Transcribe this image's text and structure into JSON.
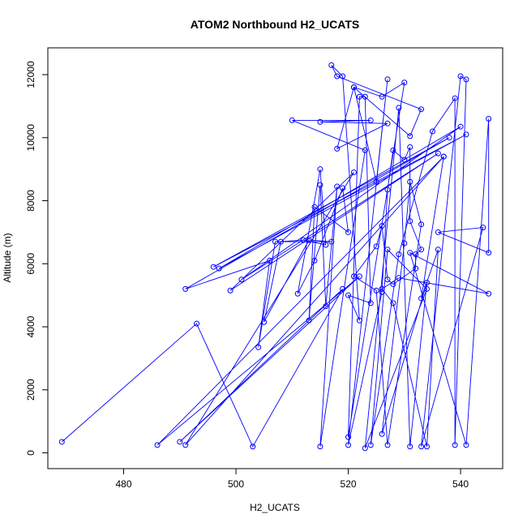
{
  "chart_data": {
    "type": "line",
    "title": "ATOM2 Northbound H2_UCATS",
    "xlabel": "H2_UCATS",
    "ylabel": "Altitude (m)",
    "xlim": [
      466.5,
      547.5
    ],
    "ylim": [
      -500,
      12850
    ],
    "x_ticks": [
      480,
      500,
      520,
      540
    ],
    "y_ticks": [
      0,
      2000,
      4000,
      6000,
      8000,
      10000,
      12000
    ],
    "grid": false,
    "legend": "none",
    "line_color": "#0000ff",
    "series": [
      {
        "marker": "open-circle",
        "points": [
          [
            469,
            350
          ],
          [
            493,
            4100
          ],
          [
            503,
            200
          ],
          [
            519,
            5200
          ],
          [
            490,
            350
          ],
          [
            522,
            5600
          ],
          [
            486,
            250
          ],
          [
            537,
            9400
          ],
          [
            491,
            250
          ],
          [
            521,
            8900
          ],
          [
            499,
            5150
          ],
          [
            536,
            9500
          ],
          [
            501,
            5500
          ],
          [
            540,
            10350
          ],
          [
            497,
            5850
          ],
          [
            541,
            10100
          ],
          [
            496,
            5900
          ],
          [
            538,
            10000
          ],
          [
            491,
            5200
          ],
          [
            506,
            6100
          ],
          [
            504,
            3350
          ],
          [
            507,
            6700
          ],
          [
            517,
            6700
          ],
          [
            513,
            6750
          ],
          [
            505,
            4150
          ],
          [
            508,
            6700
          ],
          [
            512,
            6750
          ],
          [
            516,
            6600
          ],
          [
            515,
            9000
          ],
          [
            511,
            5050
          ],
          [
            514,
            6100
          ],
          [
            519,
            8400
          ],
          [
            520,
            7000
          ],
          [
            514,
            7800
          ],
          [
            513,
            4200
          ],
          [
            515,
            8500
          ],
          [
            516,
            4650
          ],
          [
            518,
            8450
          ],
          [
            515,
            200
          ],
          [
            523,
            9600
          ],
          [
            510,
            10550
          ],
          [
            524,
            10550
          ],
          [
            515,
            10500
          ],
          [
            527,
            10450
          ],
          [
            518,
            9650
          ],
          [
            521,
            11600
          ],
          [
            526,
            11300
          ],
          [
            530,
            11750
          ],
          [
            520,
            500
          ],
          [
            522,
            11300
          ],
          [
            523,
            11300
          ],
          [
            524,
            4750
          ],
          [
            520,
            5000
          ],
          [
            522,
            4200
          ],
          [
            519,
            11950
          ],
          [
            517,
            12300
          ],
          [
            518,
            11950
          ],
          [
            533,
            10900
          ],
          [
            531,
            10050
          ],
          [
            521,
            11600
          ],
          [
            525,
            8600
          ],
          [
            527,
            11850
          ],
          [
            520,
            250
          ],
          [
            526,
            5100
          ],
          [
            527,
            8350
          ],
          [
            528,
            9600
          ],
          [
            530,
            9300
          ],
          [
            531,
            9700
          ],
          [
            531,
            7350
          ],
          [
            533,
            6450
          ],
          [
            532,
            6300
          ],
          [
            532,
            5850
          ],
          [
            528,
            5350
          ],
          [
            527,
            5500
          ],
          [
            526,
            7200
          ],
          [
            525,
            6550
          ],
          [
            521,
            5600
          ],
          [
            525,
            5150
          ],
          [
            527,
            250
          ],
          [
            533,
            7250
          ],
          [
            531,
            8600
          ],
          [
            530,
            6650
          ],
          [
            526,
            600
          ],
          [
            534,
            5400
          ],
          [
            531,
            200
          ],
          [
            529,
            10950
          ],
          [
            523,
            150
          ],
          [
            534,
            5200
          ],
          [
            527,
            6450
          ],
          [
            524,
            250
          ],
          [
            529,
            6300
          ],
          [
            535,
            10200
          ],
          [
            539,
            11250
          ],
          [
            539,
            250
          ],
          [
            541,
            11850
          ],
          [
            540,
            11950
          ],
          [
            533,
            200
          ],
          [
            544,
            7150
          ],
          [
            536,
            7000
          ],
          [
            545,
            6350
          ],
          [
            545,
            10600
          ],
          [
            541,
            250
          ],
          [
            531,
            6350
          ],
          [
            545,
            5050
          ],
          [
            529,
            5550
          ],
          [
            526,
            5200
          ],
          [
            528,
            4750
          ],
          [
            534,
            200
          ],
          [
            536,
            6450
          ],
          [
            533,
            4900
          ],
          [
            537,
            9400
          ]
        ]
      }
    ]
  }
}
